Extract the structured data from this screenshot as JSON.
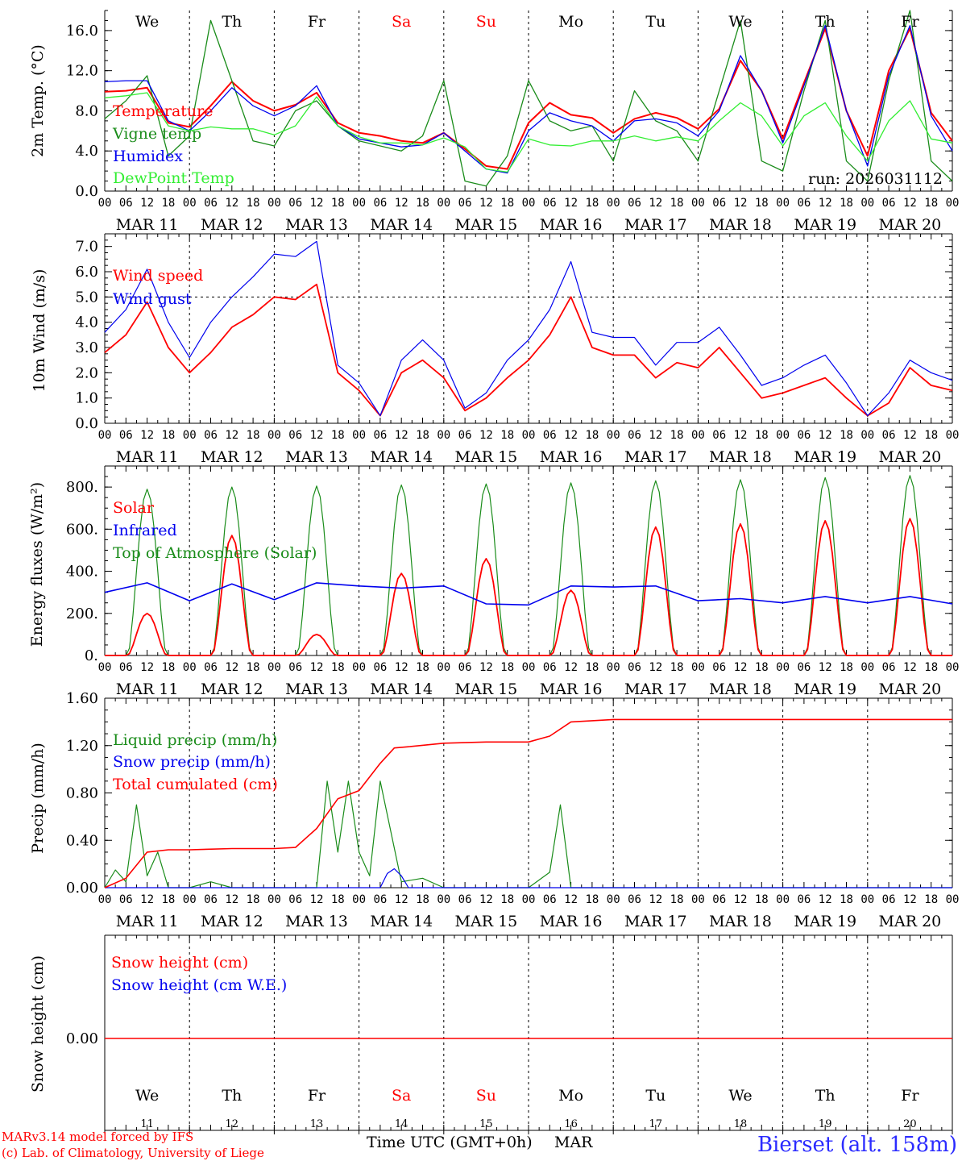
{
  "colors": {
    "red": "#ff0000",
    "green": "#1a8c1a",
    "blue": "#0000ee",
    "lightgreen": "#33ee33",
    "black": "#000000"
  },
  "days": {
    "weekday_labels": [
      "We",
      "Th",
      "Fr",
      "Sa",
      "Su",
      "Mo",
      "Tu",
      "We",
      "Th",
      "Fr"
    ],
    "weekday_colors": [
      "#000000",
      "#000000",
      "#000000",
      "#ff0000",
      "#ff0000",
      "#000000",
      "#000000",
      "#000000",
      "#000000",
      "#000000"
    ],
    "date_labels": [
      "MAR 11",
      "MAR 12",
      "MAR 13",
      "MAR 14",
      "MAR 15",
      "MAR 16",
      "MAR 17",
      "MAR 18",
      "MAR 19",
      "MAR 20"
    ],
    "day_numbers": [
      "11",
      "12",
      "13",
      "14",
      "15",
      "16",
      "17",
      "18",
      "19",
      "20"
    ],
    "hour_ticks": [
      "00",
      "06",
      "12",
      "18"
    ],
    "final_tick": "00"
  },
  "run_label": "run: 2026031112",
  "bottom": {
    "credit_line1": "MARv3.14 model forced by IFS",
    "credit_line2": "(c) Lab. of Climatology, University of Liege",
    "axis_title": "Time UTC (GMT+0h)",
    "month": "MAR",
    "station": "Bierset (alt. 158m)"
  },
  "chart_data": [
    {
      "type": "line",
      "title": "2m Temp.",
      "ylabel": "2m Temp. (°C)",
      "ylim": [
        0,
        18
      ],
      "yticks": [
        "0.0",
        "4.0",
        "8.0",
        "12.0",
        "16.0"
      ],
      "ytick_values": [
        0,
        4,
        8,
        12,
        16
      ],
      "x_hours": [
        0,
        6,
        12,
        18,
        24,
        30,
        36,
        42,
        48,
        54,
        60,
        66,
        72,
        78,
        84,
        90,
        96,
        102,
        108,
        114,
        120,
        126,
        132,
        138,
        144,
        150,
        156,
        162,
        168,
        174,
        180,
        186,
        192,
        198,
        204,
        210,
        216,
        222,
        228,
        234,
        240
      ],
      "series": [
        {
          "name": "Temperature",
          "color": "#ff0000",
          "values": [
            9.9,
            10.0,
            10.3,
            6.8,
            6.4,
            8.5,
            10.9,
            9.0,
            8.0,
            8.6,
            9.8,
            6.8,
            5.8,
            5.5,
            5.0,
            4.8,
            5.8,
            4.2,
            2.5,
            2.2,
            6.8,
            8.8,
            7.6,
            7.3,
            5.8,
            7.2,
            7.8,
            7.3,
            6.2,
            8.2,
            13.0,
            10.0,
            5.2,
            10.8,
            16.2,
            8.0,
            3.5,
            12.0,
            16.2,
            7.8,
            5.0
          ]
        },
        {
          "name": "Vigne temp",
          "color": "#1a8c1a",
          "values": [
            7.2,
            9.0,
            11.5,
            3.5,
            5.5,
            17.0,
            11.0,
            5.0,
            4.5,
            8.0,
            9.0,
            6.5,
            5.0,
            4.5,
            4.0,
            5.5,
            11.0,
            1.0,
            0.5,
            3.5,
            11.0,
            7.0,
            6.0,
            6.5,
            3.0,
            10.0,
            7.0,
            6.0,
            3.0,
            10.0,
            17.0,
            3.0,
            2.0,
            10.0,
            17.0,
            3.0,
            1.0,
            11.0,
            18.0,
            3.0,
            1.0
          ]
        },
        {
          "name": "Humidex",
          "color": "#0000ee",
          "values": [
            10.9,
            11.0,
            11.0,
            7.0,
            6.0,
            8.0,
            10.3,
            8.5,
            7.5,
            8.5,
            10.5,
            6.5,
            5.2,
            4.8,
            4.4,
            4.6,
            5.8,
            4.0,
            2.2,
            1.8,
            6.0,
            7.8,
            7.0,
            6.5,
            5.0,
            7.0,
            7.2,
            6.8,
            5.5,
            8.0,
            13.5,
            10.0,
            4.8,
            10.5,
            16.5,
            8.0,
            2.5,
            11.5,
            16.5,
            7.5,
            4.0
          ]
        },
        {
          "name": "DewPoint Temp",
          "color": "#33ee33",
          "values": [
            9.3,
            9.5,
            9.8,
            6.5,
            6.0,
            6.4,
            6.2,
            6.2,
            5.6,
            6.5,
            9.4,
            6.5,
            5.4,
            4.8,
            4.8,
            4.6,
            5.3,
            4.4,
            2.2,
            1.9,
            5.2,
            4.6,
            4.5,
            5.0,
            5.0,
            5.5,
            5.0,
            5.4,
            5.0,
            7.0,
            8.8,
            7.5,
            4.5,
            7.5,
            8.8,
            5.5,
            3.0,
            7.0,
            9.0,
            5.2,
            4.8
          ]
        }
      ]
    },
    {
      "type": "line",
      "title": "10m Wind",
      "ylabel": "10m Wind (m/s)",
      "ylim": [
        0,
        7.5
      ],
      "yticks": [
        "0.0",
        "1.0",
        "2.0",
        "3.0",
        "4.0",
        "5.0",
        "6.0",
        "7.0"
      ],
      "ytick_values": [
        0,
        1,
        2,
        3,
        4,
        5,
        6,
        7
      ],
      "ref_line": 5.0,
      "x_hours": [
        0,
        6,
        12,
        18,
        24,
        30,
        36,
        42,
        48,
        54,
        60,
        66,
        72,
        78,
        84,
        90,
        96,
        102,
        108,
        114,
        120,
        126,
        132,
        138,
        144,
        150,
        156,
        162,
        168,
        174,
        180,
        186,
        192,
        198,
        204,
        210,
        216,
        222,
        228,
        234,
        240
      ],
      "series": [
        {
          "name": "Wind speed",
          "color": "#ff0000",
          "values": [
            2.8,
            3.5,
            4.8,
            3.0,
            2.0,
            2.8,
            3.8,
            4.3,
            5.0,
            4.9,
            5.5,
            2.0,
            1.3,
            0.3,
            2.0,
            2.5,
            1.8,
            0.5,
            1.0,
            1.8,
            2.5,
            3.5,
            5.0,
            3.0,
            2.7,
            2.7,
            1.8,
            2.4,
            2.2,
            3.0,
            2.0,
            1.0,
            1.2,
            1.5,
            1.8,
            1.0,
            0.3,
            0.8,
            2.2,
            1.5,
            1.3
          ]
        },
        {
          "name": "Wind gust",
          "color": "#0000ee",
          "values": [
            3.6,
            4.5,
            6.1,
            4.0,
            2.6,
            4.0,
            5.0,
            5.8,
            6.7,
            6.6,
            7.2,
            2.3,
            1.6,
            0.3,
            2.5,
            3.3,
            2.5,
            0.6,
            1.2,
            2.5,
            3.3,
            4.5,
            6.4,
            3.6,
            3.4,
            3.4,
            2.3,
            3.2,
            3.2,
            3.8,
            2.7,
            1.5,
            1.8,
            2.3,
            2.7,
            1.6,
            0.3,
            1.2,
            2.5,
            2.0,
            1.7
          ]
        }
      ]
    },
    {
      "type": "line",
      "title": "Energy fluxes",
      "ylabel": "Energy fluxes (W/m²)",
      "ylim": [
        0,
        900
      ],
      "yticks": [
        "0.",
        "200.",
        "400.",
        "600.",
        "800."
      ],
      "ytick_values": [
        0,
        200,
        400,
        600,
        800
      ],
      "series": [
        {
          "name": "Solar",
          "color": "#ff0000",
          "daily_peaks": [
            200,
            570,
            100,
            390,
            460,
            310,
            610,
            625,
            640,
            650
          ]
        },
        {
          "name": "Infrared",
          "color": "#0000ee",
          "x_hours": [
            0,
            12,
            24,
            36,
            48,
            60,
            72,
            84,
            96,
            108,
            120,
            132,
            144,
            156,
            168,
            180,
            192,
            204,
            216,
            228,
            240
          ],
          "values": [
            300,
            345,
            260,
            340,
            265,
            345,
            330,
            320,
            330,
            245,
            240,
            330,
            325,
            330,
            260,
            270,
            250,
            280,
            250,
            280,
            245
          ]
        },
        {
          "name": "Top of Atmosphere (Solar)",
          "color": "#1a8c1a",
          "daily_peaks": [
            790,
            800,
            805,
            810,
            815,
            820,
            830,
            835,
            845,
            855
          ]
        }
      ]
    },
    {
      "type": "line",
      "title": "Precip",
      "ylabel": "Precip (mm/h)",
      "ylim": [
        0,
        1.6
      ],
      "yticks": [
        "0.00",
        "0.40",
        "0.80",
        "1.20",
        "1.60"
      ],
      "ytick_values": [
        0,
        0.4,
        0.8,
        1.2,
        1.6
      ],
      "series": [
        {
          "name": "Liquid precip (mm/h)",
          "color": "#1a8c1a",
          "x_hours": [
            0,
            3,
            6,
            9,
            12,
            15,
            18,
            21,
            24,
            30,
            36,
            42,
            48,
            54,
            60,
            63,
            66,
            69,
            72,
            75,
            78,
            84,
            90,
            96,
            102,
            108,
            114,
            120,
            126,
            129,
            132,
            138,
            144,
            150,
            156,
            162,
            168,
            180,
            192,
            204,
            216,
            228,
            240
          ],
          "values": [
            0.0,
            0.15,
            0.05,
            0.7,
            0.1,
            0.3,
            0.0,
            0.0,
            0.0,
            0.05,
            0.0,
            0.0,
            0.0,
            0.0,
            0.0,
            0.9,
            0.3,
            0.9,
            0.3,
            0.1,
            0.9,
            0.05,
            0.08,
            0.0,
            0.0,
            0.0,
            0.0,
            0.0,
            0.13,
            0.7,
            0.0,
            0.0,
            0.0,
            0.0,
            0.0,
            0.0,
            0.0,
            0.0,
            0.0,
            0.0,
            0.0,
            0.0,
            0.0
          ]
        },
        {
          "name": "Snow precip (mm/h)",
          "color": "#0000ee",
          "x_hours": [
            0,
            78,
            80,
            82,
            84,
            86,
            240
          ],
          "values": [
            0,
            0,
            0.12,
            0.16,
            0.1,
            0,
            0
          ]
        },
        {
          "name": "Total cumulated (cm)",
          "color": "#ff0000",
          "x_hours": [
            0,
            6,
            12,
            18,
            24,
            36,
            48,
            54,
            60,
            66,
            72,
            78,
            82,
            86,
            96,
            108,
            120,
            126,
            132,
            144,
            168,
            192,
            216,
            240
          ],
          "values": [
            0.0,
            0.08,
            0.3,
            0.32,
            0.32,
            0.33,
            0.33,
            0.34,
            0.5,
            0.75,
            0.82,
            1.05,
            1.18,
            1.19,
            1.22,
            1.23,
            1.23,
            1.28,
            1.4,
            1.42,
            1.42,
            1.42,
            1.42,
            1.42
          ]
        }
      ]
    },
    {
      "type": "line",
      "title": "Snow height",
      "ylabel": "Snow height (cm)",
      "yticks": [
        "0.00"
      ],
      "ytick_values": [
        0
      ],
      "series": [
        {
          "name": "Snow height (cm)",
          "color": "#ff0000",
          "values": [
            0,
            0
          ]
        },
        {
          "name": "Snow height (cm W.E.)",
          "color": "#0000ee",
          "values": [
            0,
            0
          ]
        }
      ]
    }
  ]
}
